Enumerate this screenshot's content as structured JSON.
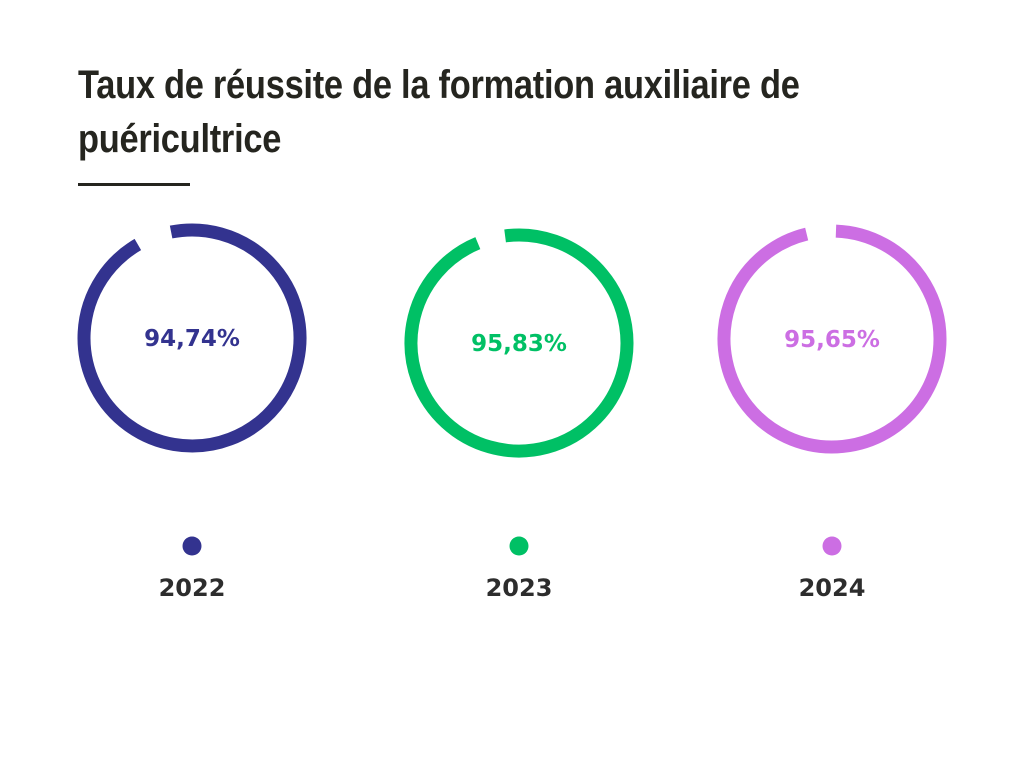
{
  "chart_data": {
    "type": "pie",
    "title": "Taux de réussite de la formation auxiliaire de puéricultrice",
    "categories": [
      "2022",
      "2023",
      "2024"
    ],
    "values": [
      94.74,
      95.83,
      95.65
    ],
    "labels": [
      "94,74%",
      "95,83%",
      "95,65%"
    ],
    "colors": [
      "#33338f",
      "#00c065",
      "#cc6ee3"
    ],
    "label_color": "#2d2d2d",
    "legend": "below each ring"
  }
}
